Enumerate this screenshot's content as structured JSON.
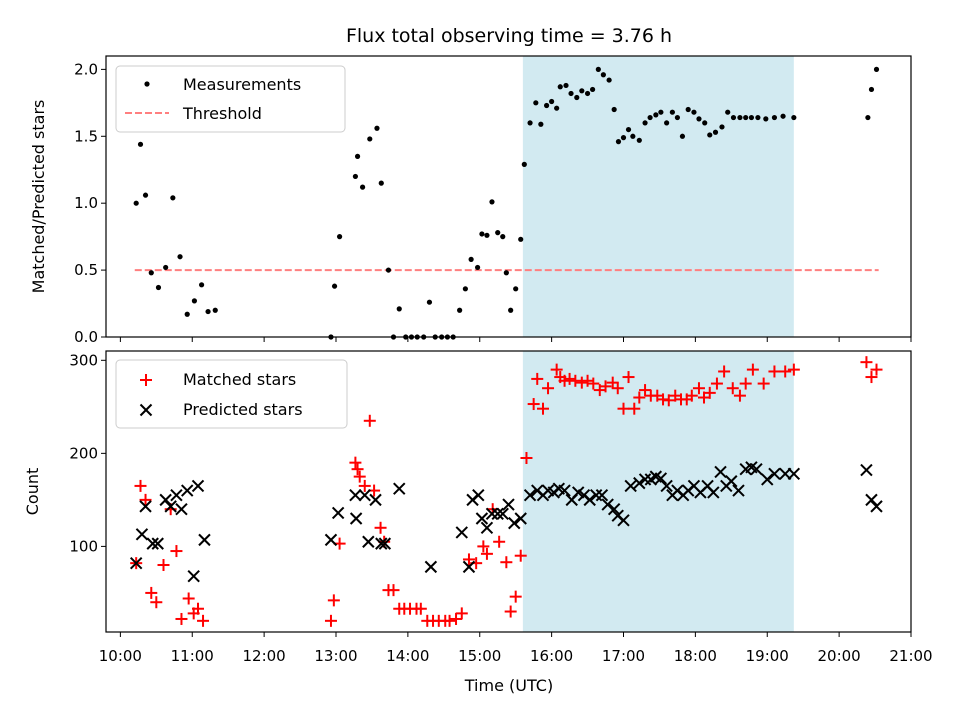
{
  "title": "Flux total observing time = 3.76 h",
  "colors": {
    "measurement": "#000000",
    "threshold": "#ff7f7f",
    "matched": "#ff0000",
    "predicted": "#000000",
    "span": "#add8e6"
  },
  "chart_data": [
    {
      "type": "scatter",
      "ylabel": "Matched/Predicted stars",
      "xlim": [
        9.8,
        21.0
      ],
      "ylim": [
        0,
        2.1
      ],
      "yticks": [
        0.0,
        0.5,
        1.0,
        1.5,
        2.0
      ],
      "ytick_labels": [
        "0.0",
        "0.5",
        "1.0",
        "1.5",
        "2.0"
      ],
      "shaded_span": [
        15.6,
        19.37
      ],
      "legend": {
        "position": "top-left",
        "measurements_label": "Measurements",
        "threshold_label": "Threshold"
      },
      "threshold": {
        "value": 0.5,
        "x_range": [
          10.2,
          20.55
        ]
      },
      "measurements": {
        "x": [
          10.22,
          10.28,
          10.35,
          10.43,
          10.53,
          10.63,
          10.73,
          10.83,
          10.93,
          11.03,
          11.13,
          11.22,
          11.32,
          12.93,
          12.98,
          13.05,
          13.27,
          13.3,
          13.37,
          13.47,
          13.57,
          13.63,
          13.73,
          13.8,
          13.88,
          13.97,
          14.05,
          14.13,
          14.22,
          14.3,
          14.38,
          14.47,
          14.55,
          14.63,
          14.72,
          14.8,
          14.88,
          14.97,
          15.03,
          15.1,
          15.17,
          15.25,
          15.32,
          15.37,
          15.43,
          15.5,
          15.57,
          15.62,
          15.7,
          15.78,
          15.85,
          15.93,
          16.0,
          16.07,
          16.12,
          16.2,
          16.27,
          16.35,
          16.42,
          16.5,
          16.57,
          16.65,
          16.72,
          16.8,
          16.87,
          16.93,
          17.0,
          17.07,
          17.13,
          17.22,
          17.3,
          17.37,
          17.45,
          17.52,
          17.6,
          17.68,
          17.75,
          17.82,
          17.9,
          17.98,
          18.05,
          18.13,
          18.2,
          18.28,
          18.37,
          18.45,
          18.53,
          18.62,
          18.7,
          18.78,
          18.87,
          18.98,
          19.1,
          19.22,
          19.37,
          20.4,
          20.45,
          20.52
        ],
        "y": [
          1.0,
          1.44,
          1.06,
          0.48,
          0.37,
          0.52,
          1.04,
          0.6,
          0.17,
          0.27,
          0.39,
          0.19,
          0.2,
          0.0,
          0.38,
          0.75,
          1.2,
          1.35,
          1.12,
          1.48,
          1.56,
          1.15,
          0.5,
          0.0,
          0.21,
          0.0,
          0.0,
          0.0,
          0.0,
          0.26,
          0.0,
          0.0,
          0.0,
          0.0,
          0.2,
          0.36,
          0.58,
          0.52,
          0.77,
          0.76,
          1.01,
          0.78,
          0.75,
          0.48,
          0.2,
          0.36,
          0.73,
          1.29,
          1.6,
          1.75,
          1.59,
          1.73,
          1.76,
          1.71,
          1.87,
          1.88,
          1.82,
          1.79,
          1.84,
          1.82,
          1.85,
          2.0,
          1.96,
          1.92,
          1.7,
          1.46,
          1.49,
          1.55,
          1.5,
          1.47,
          1.6,
          1.64,
          1.66,
          1.68,
          1.6,
          1.68,
          1.64,
          1.5,
          1.7,
          1.68,
          1.63,
          1.6,
          1.51,
          1.53,
          1.57,
          1.68,
          1.64,
          1.64,
          1.64,
          1.64,
          1.64,
          1.63,
          1.64,
          1.65,
          1.64,
          1.64,
          1.85,
          2.0
        ]
      }
    },
    {
      "type": "scatter",
      "ylabel": "Count",
      "xlabel": "Time (UTC)",
      "xlim": [
        9.8,
        21.0
      ],
      "ylim": [
        8,
        310
      ],
      "yticks": [
        100,
        200,
        300
      ],
      "ytick_labels": [
        "100",
        "200",
        "300"
      ],
      "xticks": [
        10,
        11,
        12,
        13,
        14,
        15,
        16,
        17,
        18,
        19,
        20,
        21
      ],
      "xtick_labels": [
        "10:00",
        "11:00",
        "12:00",
        "13:00",
        "14:00",
        "15:00",
        "16:00",
        "17:00",
        "18:00",
        "19:00",
        "20:00",
        "21:00"
      ],
      "shaded_span": [
        15.6,
        19.37
      ],
      "legend": {
        "position": "top-left",
        "matched_label": "Matched stars",
        "predicted_label": "Predicted stars"
      },
      "matched": {
        "x": [
          10.22,
          10.28,
          10.35,
          10.43,
          10.5,
          10.6,
          10.7,
          10.78,
          10.85,
          10.95,
          11.02,
          11.08,
          11.15,
          12.93,
          12.97,
          13.05,
          13.27,
          13.3,
          13.33,
          13.4,
          13.47,
          13.53,
          13.62,
          13.67,
          13.73,
          13.8,
          13.88,
          13.95,
          14.03,
          14.12,
          14.18,
          14.27,
          14.35,
          14.43,
          14.52,
          14.58,
          14.67,
          14.75,
          14.85,
          14.95,
          15.05,
          15.1,
          15.18,
          15.27,
          15.37,
          15.43,
          15.5,
          15.57,
          15.65,
          15.75,
          15.8,
          15.88,
          15.95,
          16.07,
          16.12,
          16.18,
          16.25,
          16.33,
          16.42,
          16.5,
          16.58,
          16.67,
          16.75,
          16.85,
          16.92,
          17.0,
          17.07,
          17.15,
          17.22,
          17.3,
          17.38,
          17.47,
          17.55,
          17.63,
          17.72,
          17.8,
          17.88,
          17.95,
          18.05,
          18.12,
          18.2,
          18.3,
          18.4,
          18.52,
          18.62,
          18.7,
          18.8,
          18.95,
          19.1,
          19.25,
          19.37,
          20.38,
          20.45,
          20.52
        ],
        "y": [
          82,
          165,
          150,
          50,
          40,
          80,
          140,
          95,
          22,
          44,
          28,
          33,
          20,
          20,
          42,
          103,
          190,
          183,
          175,
          165,
          235,
          160,
          120,
          105,
          53,
          53,
          33,
          33,
          33,
          33,
          33,
          20,
          20,
          20,
          20,
          20,
          22,
          28,
          86,
          82,
          100,
          92,
          140,
          105,
          83,
          30,
          46,
          90,
          195,
          253,
          280,
          248,
          270,
          290,
          282,
          278,
          280,
          278,
          276,
          278,
          275,
          268,
          272,
          276,
          270,
          248,
          282,
          248,
          260,
          268,
          262,
          262,
          258,
          257,
          262,
          258,
          258,
          262,
          270,
          260,
          265,
          275,
          288,
          270,
          262,
          275,
          290,
          275,
          288,
          288,
          290,
          298,
          282,
          290
        ]
      },
      "predicted": {
        "x": [
          10.22,
          10.3,
          10.35,
          10.45,
          10.52,
          10.63,
          10.7,
          10.78,
          10.85,
          10.93,
          11.02,
          11.08,
          11.17,
          12.93,
          13.03,
          13.27,
          13.28,
          13.4,
          13.45,
          13.55,
          13.63,
          13.68,
          13.88,
          14.32,
          14.75,
          14.85,
          14.9,
          14.98,
          15.03,
          15.1,
          15.17,
          15.25,
          15.32,
          15.4,
          15.48,
          15.57,
          15.7,
          15.8,
          15.88,
          15.95,
          16.03,
          16.1,
          16.18,
          16.28,
          16.37,
          16.45,
          16.53,
          16.62,
          16.7,
          16.78,
          16.87,
          16.92,
          17.0,
          17.1,
          17.22,
          17.3,
          17.38,
          17.45,
          17.52,
          17.6,
          17.68,
          17.75,
          17.83,
          17.9,
          17.98,
          18.07,
          18.17,
          18.25,
          18.35,
          18.43,
          18.5,
          18.6,
          18.7,
          18.78,
          18.85,
          19.0,
          19.1,
          19.25,
          19.37,
          20.38,
          20.45,
          20.52
        ],
        "y": [
          82,
          113,
          143,
          103,
          103,
          150,
          143,
          155,
          140,
          160,
          68,
          165,
          107,
          107,
          136,
          155,
          130,
          155,
          105,
          150,
          103,
          103,
          162,
          78,
          115,
          78,
          150,
          155,
          130,
          120,
          135,
          135,
          135,
          145,
          125,
          130,
          155,
          160,
          155,
          160,
          158,
          162,
          160,
          150,
          158,
          155,
          150,
          155,
          155,
          145,
          140,
          133,
          128,
          165,
          168,
          172,
          172,
          175,
          173,
          165,
          155,
          160,
          155,
          160,
          165,
          158,
          165,
          158,
          180,
          165,
          170,
          160,
          183,
          185,
          183,
          172,
          178,
          178,
          178,
          182,
          150,
          143
        ]
      }
    }
  ]
}
